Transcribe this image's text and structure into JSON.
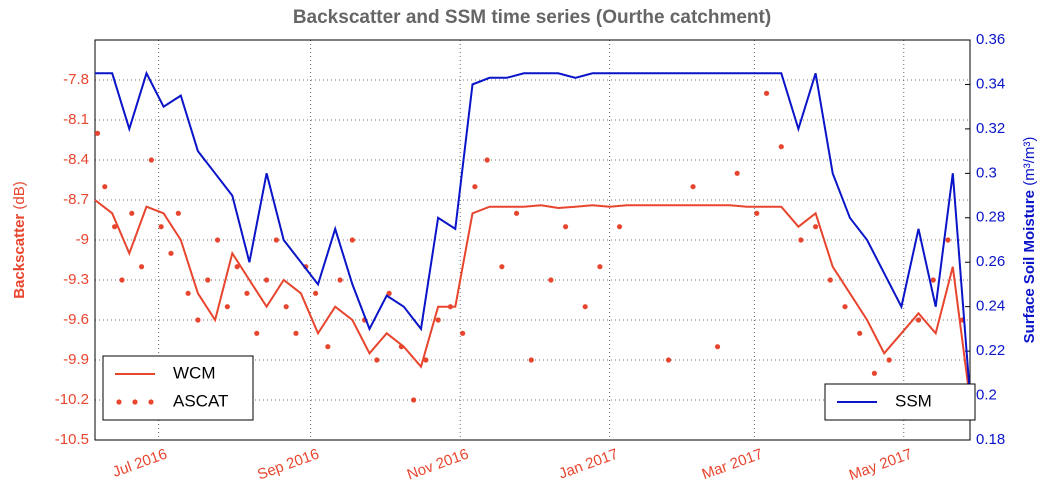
{
  "chart_data": {
    "type": "line",
    "title": "Backscatter and SSM time series (Ourthe catchment)",
    "y_label": "Backscatter",
    "y_label_unit": "(dB)",
    "y2_label": "Surface Soil Moisture",
    "y2_label_unit": "(m³/m³)",
    "xlim": [
      "2016-06-05",
      "2017-05-28"
    ],
    "xticks": [
      {
        "value": "2016-07-01",
        "label": "Jul 2016"
      },
      {
        "value": "2016-09-01",
        "label": "Sep 2016"
      },
      {
        "value": "2016-11-01",
        "label": "Nov 2016"
      },
      {
        "value": "2017-01-01",
        "label": "Jan 2017"
      },
      {
        "value": "2017-03-01",
        "label": "Mar 2017"
      },
      {
        "value": "2017-05-01",
        "label": "May 2017"
      }
    ],
    "ylim": [
      -10.5,
      -7.5
    ],
    "yticks": [
      -10.5,
      -10.2,
      -9.9,
      -9.6,
      -9.3,
      -9.0,
      -8.7,
      -8.4,
      -8.1,
      -7.8
    ],
    "y2lim": [
      0.18,
      0.36
    ],
    "y2ticks": [
      0.18,
      0.2,
      0.22,
      0.24,
      0.26,
      0.28,
      0.3,
      0.32,
      0.34,
      0.36
    ],
    "grid": true,
    "series": [
      {
        "name": "WCM",
        "kind": "line",
        "color": "#e8452e",
        "x": [
          "2016-06-05",
          "2016-06-12",
          "2016-06-19",
          "2016-06-26",
          "2016-07-03",
          "2016-07-10",
          "2016-07-17",
          "2016-07-24",
          "2016-07-31",
          "2016-08-07",
          "2016-08-14",
          "2016-08-21",
          "2016-08-28",
          "2016-09-04",
          "2016-09-11",
          "2016-09-18",
          "2016-09-25",
          "2016-10-02",
          "2016-10-09",
          "2016-10-16",
          "2016-10-23",
          "2016-10-30",
          "2016-11-06",
          "2016-11-13",
          "2016-11-20",
          "2016-11-27",
          "2016-12-04",
          "2016-12-11",
          "2016-12-18",
          "2016-12-25",
          "2017-01-01",
          "2017-01-08",
          "2017-01-15",
          "2017-01-22",
          "2017-01-29",
          "2017-02-05",
          "2017-02-12",
          "2017-02-19",
          "2017-02-26",
          "2017-03-05",
          "2017-03-12",
          "2017-03-19",
          "2017-03-26",
          "2017-04-02",
          "2017-04-09",
          "2017-04-16",
          "2017-04-23",
          "2017-04-30",
          "2017-05-07",
          "2017-05-14",
          "2017-05-21",
          "2017-05-28"
        ],
        "values": [
          -8.7,
          -8.8,
          -9.1,
          -8.75,
          -8.8,
          -9.0,
          -9.4,
          -9.6,
          -9.1,
          -9.3,
          -9.5,
          -9.3,
          -9.4,
          -9.7,
          -9.5,
          -9.6,
          -9.85,
          -9.7,
          -9.8,
          -9.95,
          -9.5,
          -9.5,
          -8.8,
          -8.75,
          -8.75,
          -8.75,
          -8.74,
          -8.76,
          -8.75,
          -8.74,
          -8.75,
          -8.74,
          -8.74,
          -8.74,
          -8.74,
          -8.74,
          -8.74,
          -8.74,
          -8.75,
          -8.75,
          -8.75,
          -8.9,
          -8.8,
          -9.2,
          -9.4,
          -9.6,
          -9.85,
          -9.7,
          -9.55,
          -9.7,
          -9.2,
          -10.2
        ]
      },
      {
        "name": "ASCAT",
        "kind": "scatter",
        "color": "#e8452e",
        "x": [
          "2016-06-06",
          "2016-06-09",
          "2016-06-13",
          "2016-06-16",
          "2016-06-20",
          "2016-06-24",
          "2016-06-28",
          "2016-07-02",
          "2016-07-06",
          "2016-07-09",
          "2016-07-13",
          "2016-07-17",
          "2016-07-21",
          "2016-07-25",
          "2016-07-29",
          "2016-08-02",
          "2016-08-06",
          "2016-08-10",
          "2016-08-14",
          "2016-08-18",
          "2016-08-22",
          "2016-08-26",
          "2016-08-30",
          "2016-09-03",
          "2016-09-08",
          "2016-09-13",
          "2016-09-18",
          "2016-09-23",
          "2016-09-28",
          "2016-10-03",
          "2016-10-08",
          "2016-10-13",
          "2016-10-18",
          "2016-10-23",
          "2016-10-28",
          "2016-11-02",
          "2016-11-07",
          "2016-11-12",
          "2016-11-18",
          "2016-11-24",
          "2016-11-30",
          "2016-12-08",
          "2016-12-14",
          "2016-12-22",
          "2016-12-28",
          "2017-01-05",
          "2017-01-25",
          "2017-02-04",
          "2017-02-14",
          "2017-02-22",
          "2017-03-02",
          "2017-03-06",
          "2017-03-12",
          "2017-03-20",
          "2017-03-26",
          "2017-04-01",
          "2017-04-07",
          "2017-04-13",
          "2017-04-19",
          "2017-04-25",
          "2017-05-01",
          "2017-05-07",
          "2017-05-13",
          "2017-05-19",
          "2017-05-25"
        ],
        "values": [
          -8.2,
          -8.6,
          -8.9,
          -9.3,
          -8.8,
          -9.2,
          -8.4,
          -8.9,
          -9.1,
          -8.8,
          -9.4,
          -9.6,
          -9.3,
          -9.0,
          -9.5,
          -9.2,
          -9.4,
          -9.7,
          -9.3,
          -9.0,
          -9.5,
          -9.7,
          -9.2,
          -9.4,
          -9.8,
          -9.3,
          -9.0,
          -9.6,
          -9.9,
          -9.4,
          -9.8,
          -10.2,
          -9.9,
          -9.6,
          -9.5,
          -9.7,
          -8.6,
          -8.4,
          -9.2,
          -8.8,
          -9.9,
          -9.3,
          -8.9,
          -9.5,
          -9.2,
          -8.9,
          -9.9,
          -8.6,
          -9.8,
          -8.5,
          -8.8,
          -7.9,
          -8.3,
          -9.0,
          -8.9,
          -9.3,
          -9.5,
          -9.7,
          -10.0,
          -9.9,
          -10.1,
          -9.6,
          -9.3,
          -9.0,
          -9.6
        ]
      },
      {
        "name": "SSM",
        "kind": "line",
        "axis": "y2",
        "color": "#0a14c8",
        "x": [
          "2016-06-05",
          "2016-06-12",
          "2016-06-19",
          "2016-06-26",
          "2016-07-03",
          "2016-07-10",
          "2016-07-17",
          "2016-07-24",
          "2016-07-31",
          "2016-08-07",
          "2016-08-14",
          "2016-08-21",
          "2016-08-28",
          "2016-09-04",
          "2016-09-11",
          "2016-09-18",
          "2016-09-25",
          "2016-10-02",
          "2016-10-09",
          "2016-10-16",
          "2016-10-23",
          "2016-10-30",
          "2016-11-06",
          "2016-11-13",
          "2016-11-20",
          "2016-11-27",
          "2016-12-04",
          "2016-12-11",
          "2016-12-18",
          "2016-12-25",
          "2017-01-01",
          "2017-01-08",
          "2017-01-15",
          "2017-01-22",
          "2017-01-29",
          "2017-02-05",
          "2017-02-12",
          "2017-02-19",
          "2017-02-26",
          "2017-03-05",
          "2017-03-12",
          "2017-03-19",
          "2017-03-26",
          "2017-04-02",
          "2017-04-09",
          "2017-04-16",
          "2017-04-23",
          "2017-04-30",
          "2017-05-07",
          "2017-05-14",
          "2017-05-21",
          "2017-05-28"
        ],
        "values": [
          0.345,
          0.345,
          0.32,
          0.345,
          0.33,
          0.335,
          0.31,
          0.3,
          0.29,
          0.26,
          0.3,
          0.27,
          0.26,
          0.25,
          0.275,
          0.25,
          0.23,
          0.245,
          0.24,
          0.23,
          0.28,
          0.275,
          0.34,
          0.343,
          0.343,
          0.345,
          0.345,
          0.345,
          0.343,
          0.345,
          0.345,
          0.345,
          0.345,
          0.345,
          0.345,
          0.345,
          0.345,
          0.345,
          0.345,
          0.345,
          0.345,
          0.32,
          0.345,
          0.3,
          0.28,
          0.27,
          0.255,
          0.24,
          0.275,
          0.24,
          0.3,
          0.2
        ]
      }
    ]
  }
}
